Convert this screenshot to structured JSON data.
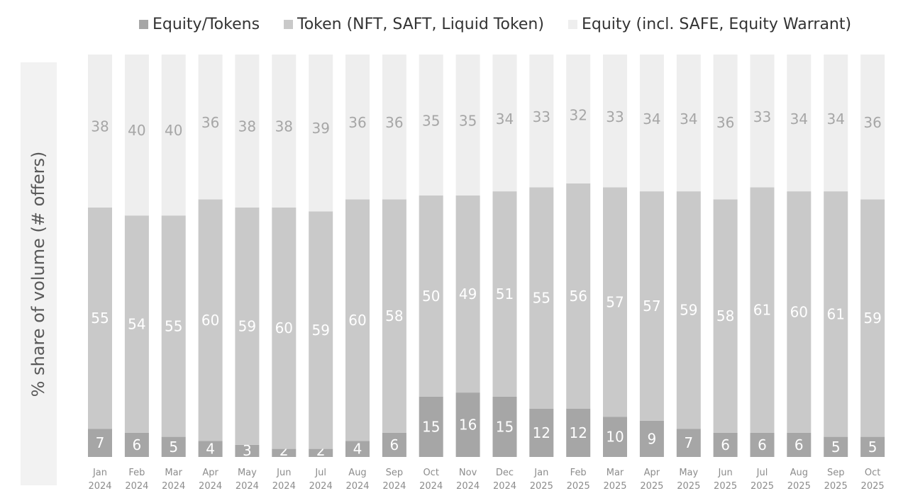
{
  "chart_data": {
    "type": "bar",
    "stacked": true,
    "normalized": true,
    "ylabel": "% share of volume (# offers)",
    "legend_position": "top",
    "ylim": [
      0,
      100
    ],
    "grid": false,
    "categories": [
      [
        "Jan",
        "2024"
      ],
      [
        "Feb",
        "2024"
      ],
      [
        "Mar",
        "2024"
      ],
      [
        "Apr",
        "2024"
      ],
      [
        "May",
        "2024"
      ],
      [
        "Jun",
        "2024"
      ],
      [
        "Jul",
        "2024"
      ],
      [
        "Aug",
        "2024"
      ],
      [
        "Sep",
        "2024"
      ],
      [
        "Oct",
        "2024"
      ],
      [
        "Nov",
        "2024"
      ],
      [
        "Dec",
        "2024"
      ],
      [
        "Jan",
        "2025"
      ],
      [
        "Feb",
        "2025"
      ],
      [
        "Mar",
        "2025"
      ],
      [
        "Apr",
        "2025"
      ],
      [
        "May",
        "2025"
      ],
      [
        "Jun",
        "2025"
      ],
      [
        "Jul",
        "2025"
      ],
      [
        "Aug",
        "2025"
      ],
      [
        "Sep",
        "2025"
      ],
      [
        "Oct",
        "2025"
      ]
    ],
    "series": [
      {
        "name": "Equity/Tokens",
        "color": "#a6a6a6",
        "label_color": "#ffffff",
        "values": [
          7,
          6,
          5,
          4,
          3,
          2,
          2,
          4,
          6,
          15,
          16,
          15,
          12,
          12,
          10,
          9,
          7,
          6,
          6,
          6,
          5,
          5
        ]
      },
      {
        "name": "Token (NFT, SAFT, Liquid Token)",
        "color": "#c9c9c9",
        "label_color": "#ffffff",
        "values": [
          55,
          54,
          55,
          60,
          59,
          60,
          59,
          60,
          58,
          50,
          49,
          51,
          55,
          56,
          57,
          57,
          59,
          58,
          61,
          60,
          61,
          59
        ]
      },
      {
        "name": "Equity (incl. SAFE, Equity Warrant)",
        "color": "#eeeeee",
        "label_color": "#a6a6a6",
        "values": [
          38,
          40,
          40,
          36,
          38,
          38,
          39,
          36,
          36,
          35,
          35,
          34,
          33,
          32,
          33,
          34,
          34,
          36,
          33,
          34,
          34,
          36
        ]
      }
    ]
  }
}
